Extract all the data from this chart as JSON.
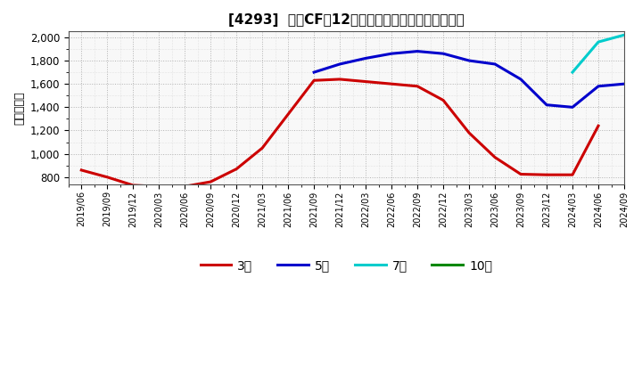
{
  "title": "[4293]  営業CFの12か月移動合計の標準偏差の推移",
  "ylabel": "（百万円）",
  "ylim": [
    740,
    2050
  ],
  "yticks": [
    800,
    1000,
    1200,
    1400,
    1600,
    1800,
    2000
  ],
  "background_color": "#ffffff",
  "plot_bg_color": "#f8f8f8",
  "grid_color": "#aaaaaa",
  "series": {
    "3year": {
      "color": "#cc0000",
      "label": "3年",
      "x": [
        0,
        1,
        2,
        3,
        4,
        5,
        6,
        7,
        8,
        9,
        10,
        11,
        12,
        13,
        14,
        15,
        16,
        17,
        18,
        19,
        20
      ],
      "y": [
        860,
        800,
        730,
        720,
        720,
        760,
        870,
        1050,
        1340,
        1630,
        1640,
        1620,
        1600,
        1580,
        1460,
        1180,
        970,
        825,
        820,
        820,
        1240
      ]
    },
    "5year": {
      "color": "#0000cc",
      "label": "5年",
      "x": [
        9,
        10,
        11,
        12,
        13,
        14,
        15,
        16,
        17,
        18,
        19,
        20,
        21
      ],
      "y": [
        1700,
        1770,
        1820,
        1860,
        1880,
        1860,
        1800,
        1770,
        1640,
        1420,
        1400,
        1580,
        1600
      ]
    },
    "7year": {
      "color": "#00cccc",
      "label": "7年",
      "x": [
        19,
        20,
        21
      ],
      "y": [
        1700,
        1960,
        2020
      ]
    },
    "10year": {
      "color": "#008800",
      "label": "10年",
      "x": [],
      "y": []
    }
  },
  "xtick_labels": [
    "2019/06",
    "2019/09",
    "2019/12",
    "2020/03",
    "2020/06",
    "2020/09",
    "2020/12",
    "2021/03",
    "2021/06",
    "2021/09",
    "2021/12",
    "2022/03",
    "2022/06",
    "2022/09",
    "2022/12",
    "2023/03",
    "2023/06",
    "2023/09",
    "2023/12",
    "2024/03",
    "2024/06",
    "2024/09"
  ],
  "legend_colors": [
    "#cc0000",
    "#0000cc",
    "#00cccc",
    "#008800"
  ],
  "legend_labels": [
    "3年",
    "5年",
    "7年",
    "10年"
  ]
}
